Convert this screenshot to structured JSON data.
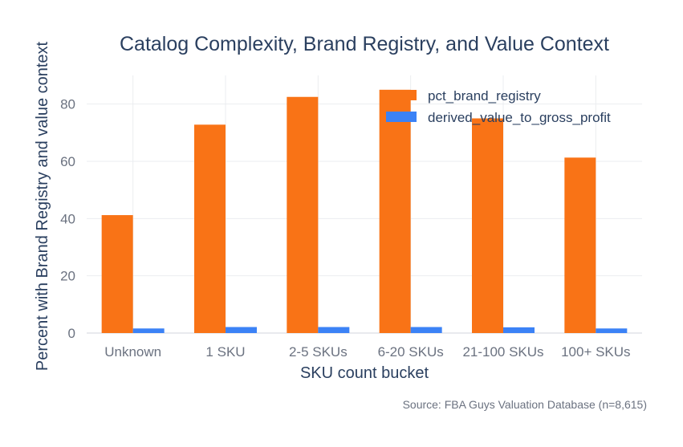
{
  "chart_data": {
    "type": "bar",
    "title": "Catalog Complexity, Brand Registry, and Value Context",
    "xlabel": "SKU count bucket",
    "ylabel": "Percent with Brand Registry and value context",
    "categories": [
      "Unknown",
      "1 SKU",
      "2-5 SKUs",
      "6-20 SKUs",
      "21-100 SKUs",
      "100+ SKUs"
    ],
    "series": [
      {
        "name": "pct_brand_registry",
        "color": "#f97316",
        "values": [
          41.2,
          72.8,
          82.5,
          85.0,
          75.0,
          61.3
        ]
      },
      {
        "name": "derived_value_to_gross_profit",
        "color": "#3b82f6",
        "values": [
          1.6,
          2.1,
          2.1,
          2.1,
          2.0,
          1.6
        ]
      }
    ],
    "ylim": [
      0,
      90
    ],
    "yticks": [
      0,
      20,
      40,
      60,
      80
    ],
    "grid": true,
    "legend_position": "top-right",
    "source": "Source: FBA Guys Valuation Database (n=8,615)"
  }
}
